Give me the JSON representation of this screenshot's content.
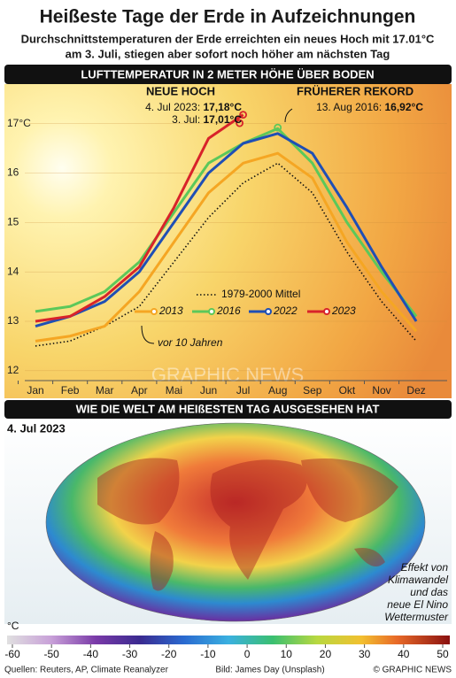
{
  "title": "Heißeste Tage der Erde in Aufzeichnungen",
  "subtitle": [
    "Durchschnittstemperaturen der Erde erreichten ein neues Hoch mit 17.01°C",
    "am 3. Juli, stiegen aber sofort noch höher am nächsten Tag"
  ],
  "chart_data": {
    "type": "line",
    "section_title": "LUFTTEMPERATUR IN 2 METER HÖHE ÜBER BODEN",
    "categories": [
      "Jan",
      "Feb",
      "Mar",
      "Apr",
      "Mai",
      "Jun",
      "Jul",
      "Aug",
      "Sep",
      "Okt",
      "Nov",
      "Dez"
    ],
    "ylim": [
      11.8,
      17.8
    ],
    "yticks": [
      12,
      13,
      14,
      15,
      16,
      {
        "value": 17,
        "label": "17°C"
      }
    ],
    "series": [
      {
        "name": "1979-2000 Mittel",
        "color": "#111111",
        "dash": "dotted",
        "values": [
          12.5,
          12.6,
          12.9,
          13.3,
          14.2,
          15.1,
          15.8,
          16.2,
          15.6,
          14.4,
          13.4,
          12.6
        ]
      },
      {
        "name": "2013",
        "color": "#f5a623",
        "values": [
          12.6,
          12.7,
          12.9,
          13.6,
          14.6,
          15.6,
          16.2,
          16.4,
          15.9,
          14.6,
          13.6,
          12.8
        ]
      },
      {
        "name": "2016",
        "color": "#5cc85a",
        "values": [
          13.2,
          13.3,
          13.6,
          14.2,
          15.2,
          16.2,
          16.6,
          16.9,
          16.2,
          15.0,
          14.0,
          13.1
        ]
      },
      {
        "name": "2022",
        "color": "#1f4fb5",
        "values": [
          12.9,
          13.1,
          13.4,
          14.0,
          15.0,
          16.0,
          16.6,
          16.8,
          16.4,
          15.3,
          14.1,
          13.0
        ]
      },
      {
        "name": "2023",
        "color": "#d8232a",
        "values": [
          13.0,
          13.1,
          13.5,
          14.1,
          15.3,
          16.7,
          17.18,
          null,
          null,
          null,
          null,
          null
        ]
      }
    ],
    "annotations": [
      {
        "heading": "NEUE HOCH",
        "text": "4. Jul 2023:",
        "value_label": "17,18°C",
        "value": 17.18,
        "category": 6,
        "series": 4
      },
      {
        "text": "3. Jul:",
        "value_label": "17,01°C",
        "value": 17.01,
        "category": 6,
        "series": 4
      },
      {
        "heading": "FRÜHERER REKORD",
        "text": "13. Aug 2016:",
        "value_label": "16,92°C",
        "value": 16.92,
        "category": 7,
        "series": 2
      }
    ],
    "note": "vor 10 Jahren",
    "watermark": "GRAPHIC NEWS"
  },
  "map": {
    "section_title": "WIE DIE WELT AM HEIßESTEN TAG AUSGESEHEN HAT",
    "date": "4. Jul 2023",
    "note": [
      "Effekt von",
      "Klimawandel",
      "und das",
      "neue El Nino",
      "Wettermuster"
    ],
    "colorbar": {
      "unit": "°C",
      "ticks": [
        -60,
        -50,
        -40,
        -30,
        -20,
        -10,
        0,
        10,
        20,
        30,
        40,
        50
      ]
    }
  },
  "footer": {
    "sources": "Quellen: Reuters, AP, Climate Reanalyzer",
    "image": "Bild: James Day (Unsplash)",
    "copyright": "© GRAPHIC NEWS"
  }
}
